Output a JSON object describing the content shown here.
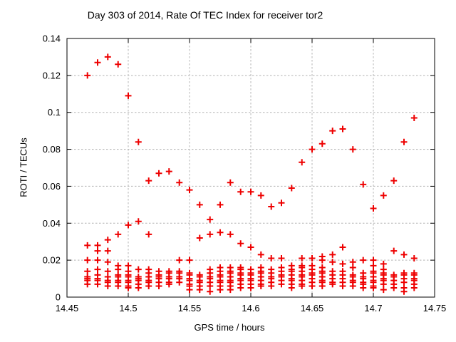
{
  "colors": {
    "background": "#ffffff",
    "axis": "#000000",
    "grid": "#b4b4b4",
    "marker": "#ee0000"
  },
  "chart_data": {
    "type": "scatter",
    "title": "Day 303 of 2014, Rate Of TEC Index for receiver tor2",
    "xlabel": "GPS time / hours",
    "ylabel": "ROTI / TECUs",
    "xlim": [
      14.45,
      14.75
    ],
    "ylim": [
      0,
      0.14
    ],
    "xtick_values": [
      14.45,
      14.5,
      14.55,
      14.6,
      14.65,
      14.7,
      14.75
    ],
    "xtick_labels": [
      "14.45",
      "14.5",
      "14.55",
      "14.6",
      "14.65",
      "14.7",
      "14.75"
    ],
    "ytick_values": [
      0,
      0.02,
      0.04,
      0.06,
      0.08,
      0.1,
      0.12,
      0.14
    ],
    "ytick_labels": [
      "0",
      "0.02",
      "0.04",
      "0.06",
      "0.08",
      "0.1",
      "0.12",
      "0.14"
    ],
    "grid": true,
    "legend_position": "none",
    "marker": {
      "shape": "plus",
      "size": 9,
      "stroke_width": 2
    },
    "series": [
      {
        "name": "ROTI",
        "columns": [
          {
            "t": 14.4667,
            "values": [
              0.12,
              0.028,
              0.02,
              0.014,
              0.011,
              0.01,
              0.009,
              0.007
            ]
          },
          {
            "t": 14.475,
            "values": [
              0.127,
              0.028,
              0.025,
              0.02,
              0.015,
              0.012,
              0.01,
              0.009,
              0.007
            ]
          },
          {
            "t": 14.4833,
            "values": [
              0.13,
              0.031,
              0.025,
              0.019,
              0.014,
              0.011,
              0.009,
              0.008,
              0.006
            ]
          },
          {
            "t": 14.4917,
            "values": [
              0.126,
              0.034,
              0.017,
              0.015,
              0.012,
              0.011,
              0.009,
              0.008,
              0.006
            ]
          },
          {
            "t": 14.5,
            "values": [
              0.109,
              0.039,
              0.017,
              0.014,
              0.012,
              0.011,
              0.009,
              0.008,
              0.006,
              0.005
            ]
          },
          {
            "t": 14.5083,
            "values": [
              0.084,
              0.041,
              0.015,
              0.011,
              0.01,
              0.009,
              0.007,
              0.005
            ]
          },
          {
            "t": 14.5167,
            "values": [
              0.063,
              0.034,
              0.015,
              0.013,
              0.011,
              0.009,
              0.008,
              0.006
            ]
          },
          {
            "t": 14.525,
            "values": [
              0.067,
              0.014,
              0.012,
              0.011,
              0.01,
              0.008,
              0.006
            ]
          },
          {
            "t": 14.5333,
            "values": [
              0.068,
              0.014,
              0.013,
              0.011,
              0.01,
              0.008,
              0.007
            ]
          },
          {
            "t": 14.5417,
            "values": [
              0.062,
              0.02,
              0.014,
              0.013,
              0.011,
              0.01,
              0.008
            ]
          },
          {
            "t": 14.55,
            "values": [
              0.058,
              0.02,
              0.013,
              0.012,
              0.01,
              0.009,
              0.007,
              0.006,
              0.004
            ]
          },
          {
            "t": 14.5583,
            "values": [
              0.05,
              0.032,
              0.012,
              0.011,
              0.009,
              0.008,
              0.006,
              0.004
            ]
          },
          {
            "t": 14.5667,
            "values": [
              0.042,
              0.034,
              0.015,
              0.013,
              0.011,
              0.01,
              0.008,
              0.006,
              0.003
            ]
          },
          {
            "t": 14.575,
            "values": [
              0.05,
              0.035,
              0.016,
              0.014,
              0.012,
              0.011,
              0.009,
              0.008,
              0.006,
              0.004
            ]
          },
          {
            "t": 14.5833,
            "values": [
              0.062,
              0.034,
              0.016,
              0.014,
              0.013,
              0.011,
              0.009,
              0.008,
              0.006,
              0.004
            ]
          },
          {
            "t": 14.5917,
            "values": [
              0.057,
              0.029,
              0.016,
              0.015,
              0.013,
              0.012,
              0.01,
              0.009,
              0.007,
              0.005
            ]
          },
          {
            "t": 14.6,
            "values": [
              0.057,
              0.027,
              0.015,
              0.013,
              0.012,
              0.01,
              0.009,
              0.007,
              0.005
            ]
          },
          {
            "t": 14.6083,
            "values": [
              0.055,
              0.023,
              0.016,
              0.014,
              0.013,
              0.011,
              0.009,
              0.007,
              0.006
            ]
          },
          {
            "t": 14.6167,
            "values": [
              0.049,
              0.021,
              0.015,
              0.013,
              0.011,
              0.01,
              0.008,
              0.006
            ]
          },
          {
            "t": 14.625,
            "values": [
              0.051,
              0.021,
              0.016,
              0.014,
              0.012,
              0.011,
              0.009,
              0.007
            ]
          },
          {
            "t": 14.6333,
            "values": [
              0.059,
              0.017,
              0.015,
              0.014,
              0.012,
              0.01,
              0.009,
              0.007,
              0.005
            ]
          },
          {
            "t": 14.6417,
            "values": [
              0.073,
              0.021,
              0.017,
              0.016,
              0.014,
              0.012,
              0.011,
              0.009,
              0.007,
              0.006
            ]
          },
          {
            "t": 14.65,
            "values": [
              0.08,
              0.021,
              0.017,
              0.015,
              0.013,
              0.012,
              0.01,
              0.008,
              0.006
            ]
          },
          {
            "t": 14.6583,
            "values": [
              0.083,
              0.022,
              0.02,
              0.016,
              0.014,
              0.013,
              0.011,
              0.009,
              0.008,
              0.006
            ]
          },
          {
            "t": 14.6667,
            "values": [
              0.09,
              0.023,
              0.019,
              0.014,
              0.012,
              0.01,
              0.008,
              0.007
            ]
          },
          {
            "t": 14.675,
            "values": [
              0.091,
              0.027,
              0.018,
              0.014,
              0.012,
              0.01,
              0.008,
              0.006
            ]
          },
          {
            "t": 14.6833,
            "values": [
              0.08,
              0.019,
              0.016,
              0.012,
              0.011,
              0.009,
              0.008,
              0.006
            ]
          },
          {
            "t": 14.6917,
            "values": [
              0.061,
              0.02,
              0.013,
              0.011,
              0.01,
              0.008,
              0.007,
              0.005
            ]
          },
          {
            "t": 14.7,
            "values": [
              0.048,
              0.02,
              0.017,
              0.014,
              0.013,
              0.011,
              0.009,
              0.008,
              0.006,
              0.005
            ]
          },
          {
            "t": 14.7083,
            "values": [
              0.055,
              0.018,
              0.015,
              0.013,
              0.012,
              0.01,
              0.009,
              0.007,
              0.004
            ]
          },
          {
            "t": 14.7167,
            "values": [
              0.063,
              0.025,
              0.012,
              0.011,
              0.009,
              0.007,
              0.005
            ]
          },
          {
            "t": 14.725,
            "values": [
              0.084,
              0.023,
              0.013,
              0.012,
              0.01,
              0.008,
              0.005,
              0.003
            ]
          },
          {
            "t": 14.7333,
            "values": [
              0.097,
              0.021,
              0.013,
              0.012,
              0.01,
              0.009,
              0.007,
              0.005
            ]
          }
        ]
      }
    ]
  }
}
